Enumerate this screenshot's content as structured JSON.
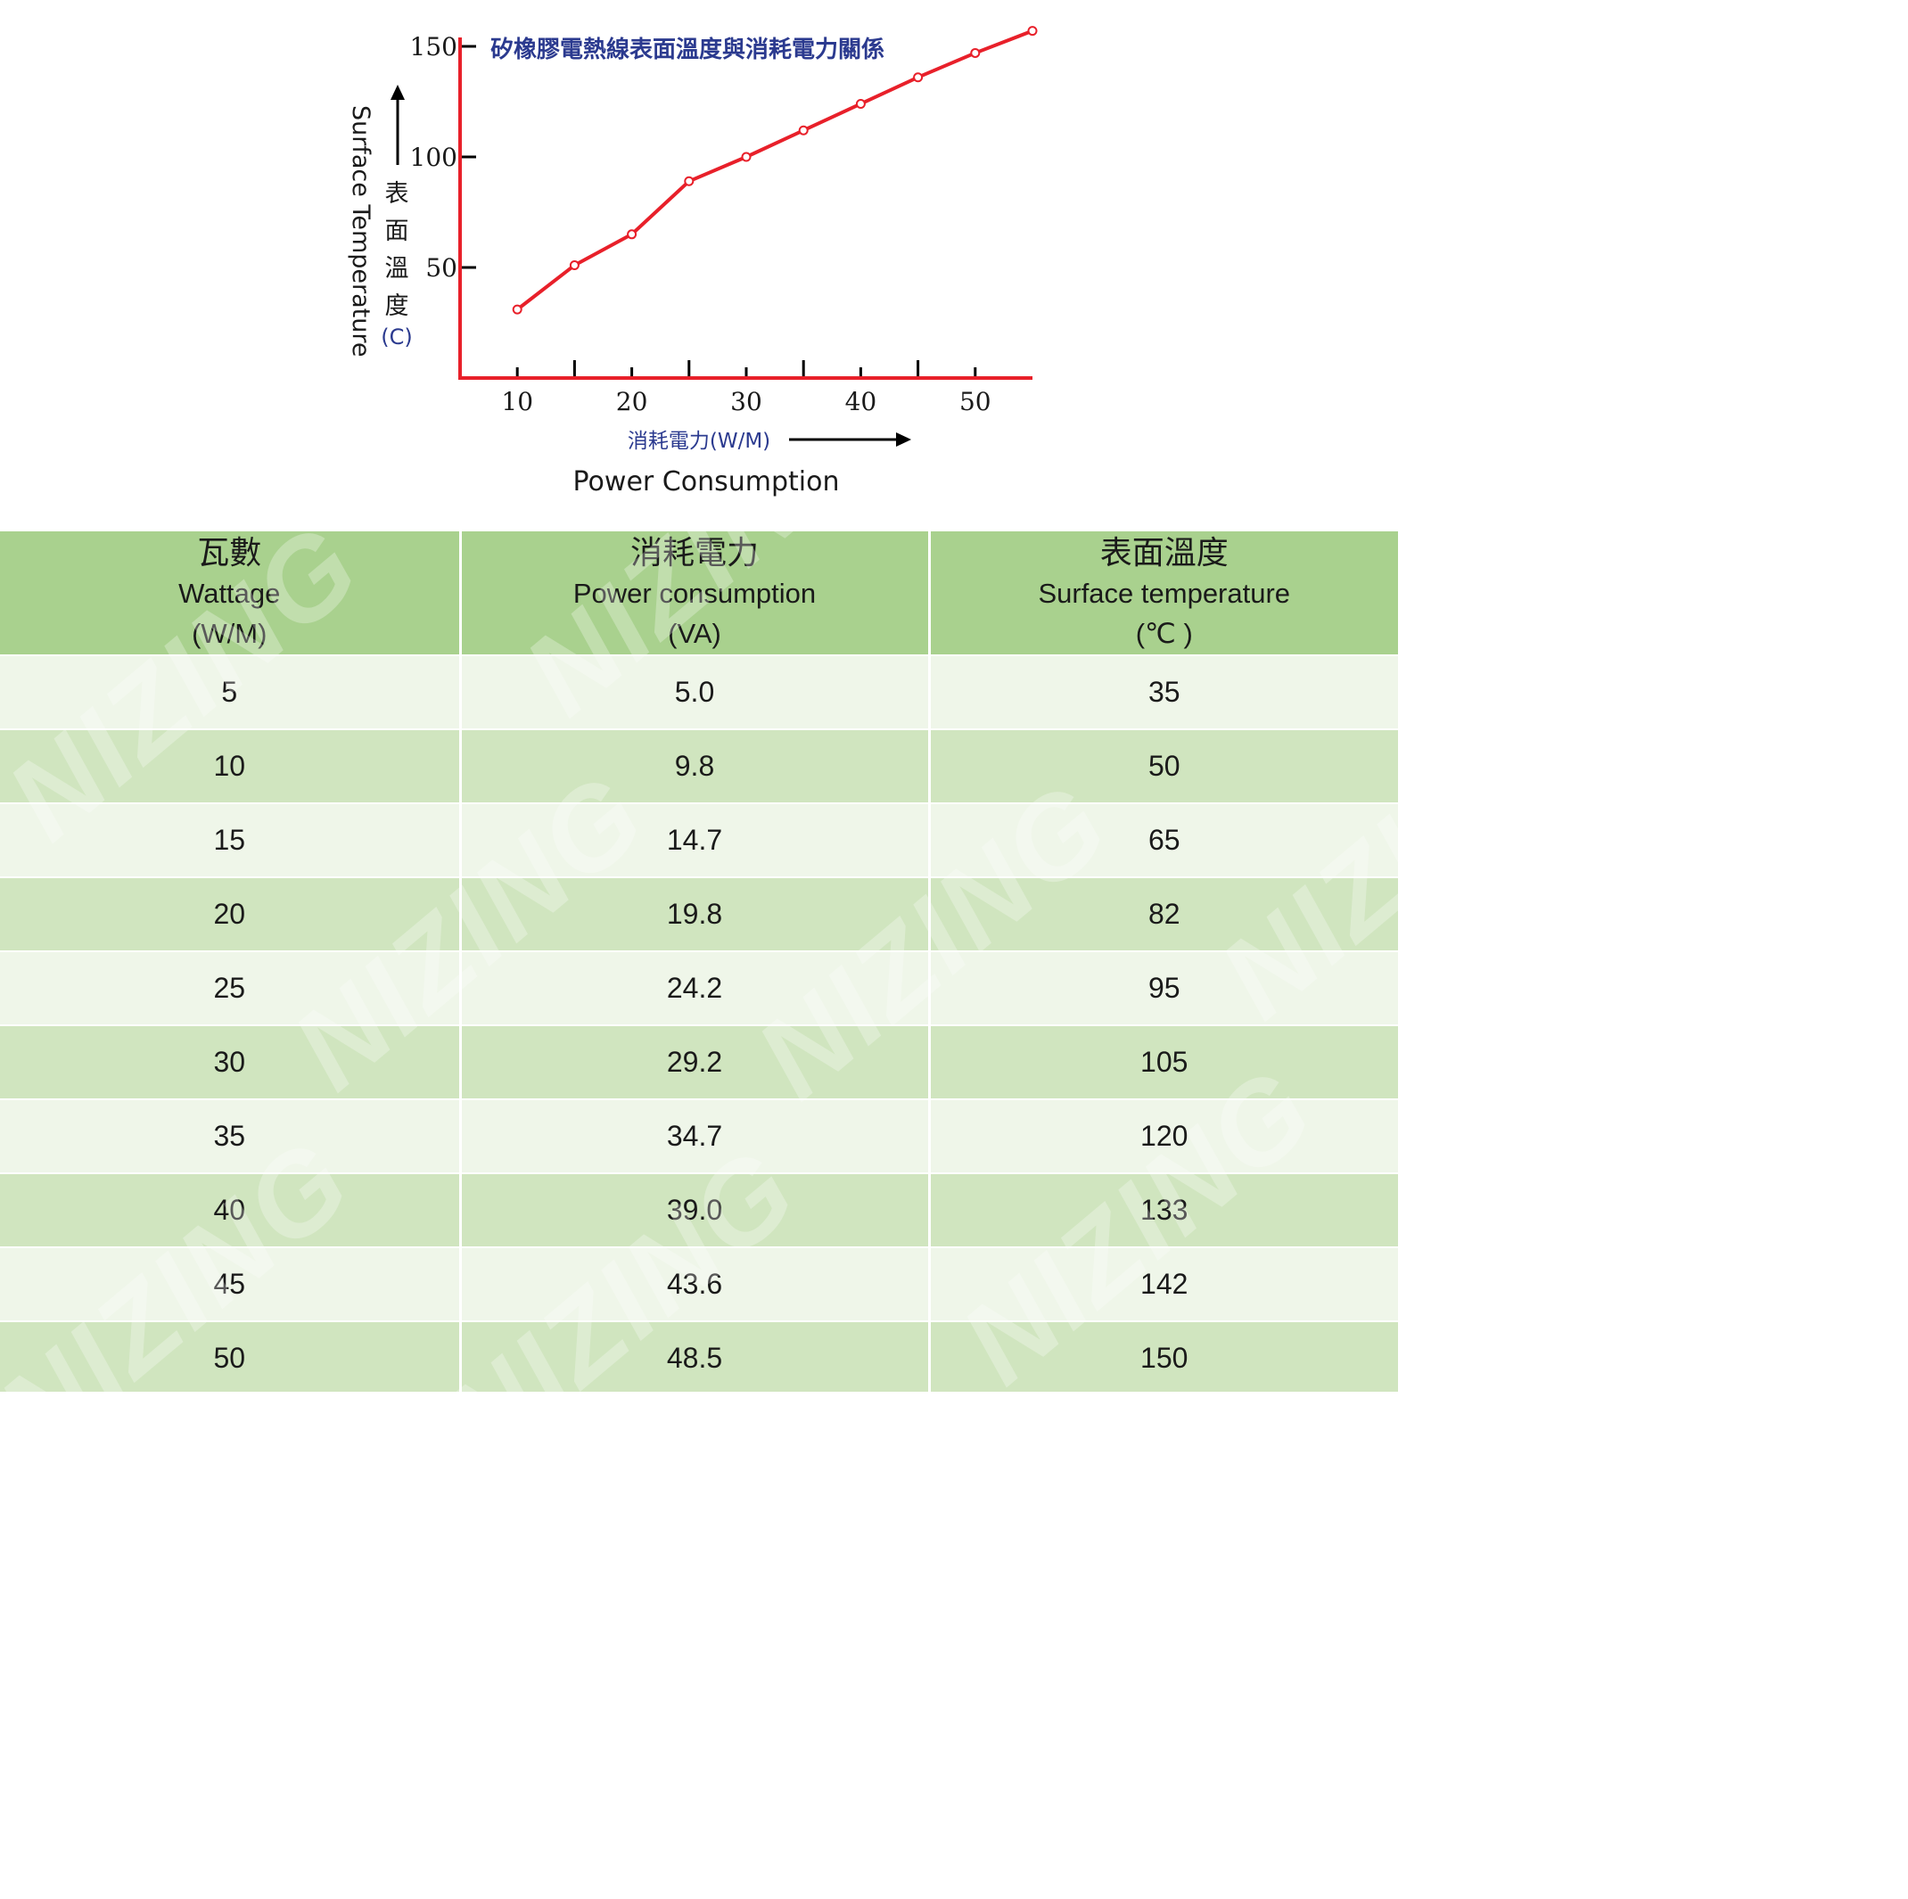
{
  "chart_data": {
    "type": "line",
    "title": "矽橡膠電熱線表面溫度與消耗電力關係",
    "y_axis": {
      "label_en": "Surface Temperature",
      "label_cn": [
        "表",
        "面",
        "溫",
        "度"
      ],
      "unit": "(C)",
      "ticks": [
        50,
        100,
        150
      ],
      "range": [
        0,
        150
      ]
    },
    "x_axis": {
      "label_cn": "消耗電力(W/M)",
      "label_en": "Power Consumption",
      "ticks": [
        10,
        20,
        30,
        40,
        50
      ],
      "minor_ticks": [
        15,
        25,
        35,
        45
      ],
      "range": [
        5,
        55
      ]
    },
    "series": [
      {
        "x": [
          10,
          15,
          20,
          25,
          30,
          35,
          40,
          45,
          50,
          55
        ],
        "y": [
          31,
          51,
          65,
          89,
          100,
          112,
          124,
          136,
          147,
          157
        ]
      }
    ],
    "colors": {
      "line": "#e8202a",
      "axis": "#e8202a",
      "title": "#2b3a8f",
      "marker_fill": "#ffffff"
    }
  },
  "table": {
    "headers": [
      {
        "cn": "瓦數",
        "en": "Wattage",
        "unit": "(W/M)"
      },
      {
        "cn": "消耗電力",
        "en": "Power consumption",
        "unit": "(VA)"
      },
      {
        "cn": "表面溫度",
        "en": "Surface temperature",
        "unit": "(℃ )"
      }
    ],
    "rows": [
      [
        "5",
        "5.0",
        "35"
      ],
      [
        "10",
        "9.8",
        "50"
      ],
      [
        "15",
        "14.7",
        "65"
      ],
      [
        "20",
        "19.8",
        "82"
      ],
      [
        "25",
        "24.2",
        "95"
      ],
      [
        "30",
        "29.2",
        "105"
      ],
      [
        "35",
        "34.7",
        "120"
      ],
      [
        "40",
        "39.0",
        "133"
      ],
      [
        "45",
        "43.6",
        "142"
      ],
      [
        "50",
        "48.5",
        "150"
      ]
    ],
    "colors": {
      "header": "#a9d18e",
      "row_light": "#eff6e9",
      "row_dark": "#d0e5bf"
    }
  },
  "watermark": {
    "text": "NIZING"
  }
}
